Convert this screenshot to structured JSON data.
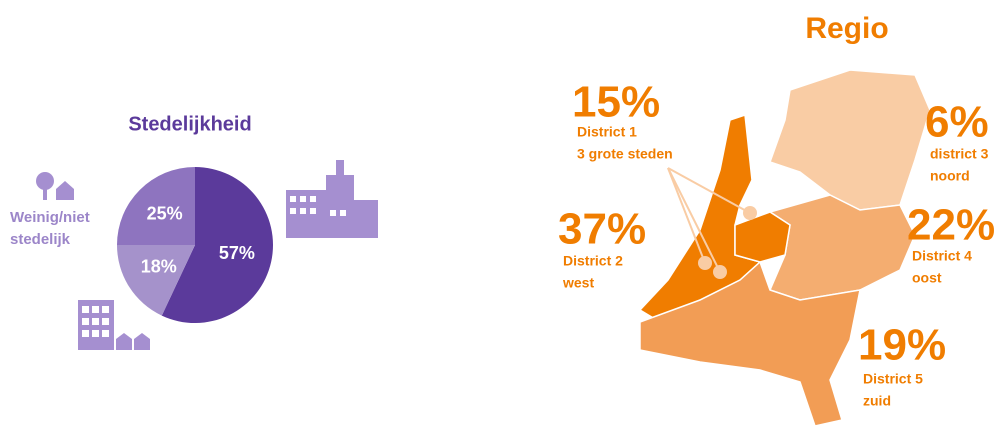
{
  "chart_data": [
    {
      "type": "pie",
      "title": "Stedelijkheid",
      "categories": [
        "Sterk stedelijk",
        "Matig stedelijk",
        "Weinig/niet stedelijk"
      ],
      "values": [
        57,
        18,
        25
      ],
      "value_labels": [
        "57%",
        "18%",
        "25%"
      ],
      "colors": [
        "#5b3a9b",
        "#a592cb",
        "#8e74bf"
      ]
    },
    {
      "type": "map",
      "title": "Regio",
      "categories": [
        "District 1",
        "District 2",
        "district 3",
        "District 4",
        "District 5"
      ],
      "descriptions": [
        "3 grote steden",
        "west",
        "noord",
        "oost",
        "zuid"
      ],
      "values": [
        15,
        37,
        6,
        22,
        19
      ],
      "value_labels": [
        "15%",
        "37%",
        "6%",
        "22%",
        "19%"
      ],
      "colors": [
        "#f07d00",
        "#f07d00",
        "#f9ccA4",
        "#f4ad70",
        "#f29d55"
      ]
    }
  ]
}
